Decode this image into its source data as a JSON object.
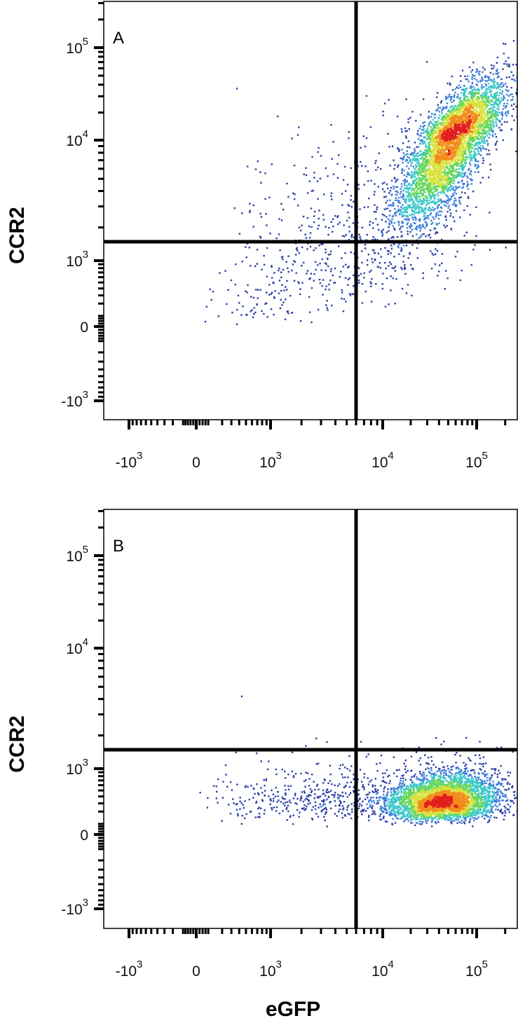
{
  "chart_data": [
    {
      "type": "scatter",
      "panel_label": "A",
      "xlabel": "",
      "ylabel": "CCR2",
      "x_ticks": [
        {
          "value": -1000,
          "base": "-10",
          "exp": "3"
        },
        {
          "value": 0,
          "base": "0",
          "exp": ""
        },
        {
          "value": 1000,
          "base": "10",
          "exp": "3"
        },
        {
          "value": 10000,
          "base": "10",
          "exp": "4"
        },
        {
          "value": 100000,
          "base": "10",
          "exp": "5"
        }
      ],
      "y_ticks": [
        {
          "value": -1000,
          "base": "-10",
          "exp": "3"
        },
        {
          "value": 0,
          "base": "0",
          "exp": ""
        },
        {
          "value": 1000,
          "base": "10",
          "exp": "3"
        },
        {
          "value": 10000,
          "base": "10",
          "exp": "4"
        },
        {
          "value": 100000,
          "base": "10",
          "exp": "5"
        }
      ],
      "quadrant_gate": {
        "x": 6000,
        "y": 1500
      },
      "populations": [
        {
          "name": "",
          "center": [
            55000,
            10000
          ],
          "spread": [
            0.28,
            0.33
          ],
          "correlation": 0.75,
          "count": 4200
        },
        {
          "name": "",
          "center": [
            7000,
            1800
          ],
          "spread": [
            0.55,
            0.45
          ],
          "correlation": 0.3,
          "count": 520
        },
        {
          "name": "",
          "center": [
            1500,
            600
          ],
          "spread": [
            0.55,
            0.5
          ],
          "correlation": 0.2,
          "count": 160
        }
      ],
      "colormap": [
        "#2b3fa6",
        "#3d7dd8",
        "#3cc8c8",
        "#66d65c",
        "#d8e23a",
        "#f28c1c",
        "#e01e1e"
      ],
      "grid": false
    },
    {
      "type": "scatter",
      "panel_label": "B",
      "xlabel": "eGFP",
      "ylabel": "CCR2",
      "x_ticks": [
        {
          "value": -1000,
          "base": "-10",
          "exp": "3"
        },
        {
          "value": 0,
          "base": "0",
          "exp": ""
        },
        {
          "value": 1000,
          "base": "10",
          "exp": "3"
        },
        {
          "value": 10000,
          "base": "10",
          "exp": "4"
        },
        {
          "value": 100000,
          "base": "10",
          "exp": "5"
        }
      ],
      "y_ticks": [
        {
          "value": -1000,
          "base": "-10",
          "exp": "3"
        },
        {
          "value": 0,
          "base": "0",
          "exp": ""
        },
        {
          "value": 1000,
          "base": "10",
          "exp": "3"
        },
        {
          "value": 10000,
          "base": "10",
          "exp": "4"
        },
        {
          "value": 100000,
          "base": "10",
          "exp": "5"
        }
      ],
      "quadrant_gate": {
        "x": 6000,
        "y": 1500
      },
      "populations": [
        {
          "name": "",
          "center": [
            45000,
            350
          ],
          "spread": [
            0.3,
            0.22
          ],
          "correlation": 0.1,
          "count": 3600
        },
        {
          "name": "",
          "center": [
            5000,
            400
          ],
          "spread": [
            0.5,
            0.25
          ],
          "correlation": 0.0,
          "count": 420
        },
        {
          "name": "",
          "center": [
            900,
            350
          ],
          "spread": [
            0.5,
            0.3
          ],
          "correlation": 0.0,
          "count": 90
        }
      ],
      "colormap": [
        "#2b3fa6",
        "#3d7dd8",
        "#3cc8c8",
        "#66d65c",
        "#d8e23a",
        "#f28c1c",
        "#e01e1e"
      ],
      "grid": false
    }
  ]
}
